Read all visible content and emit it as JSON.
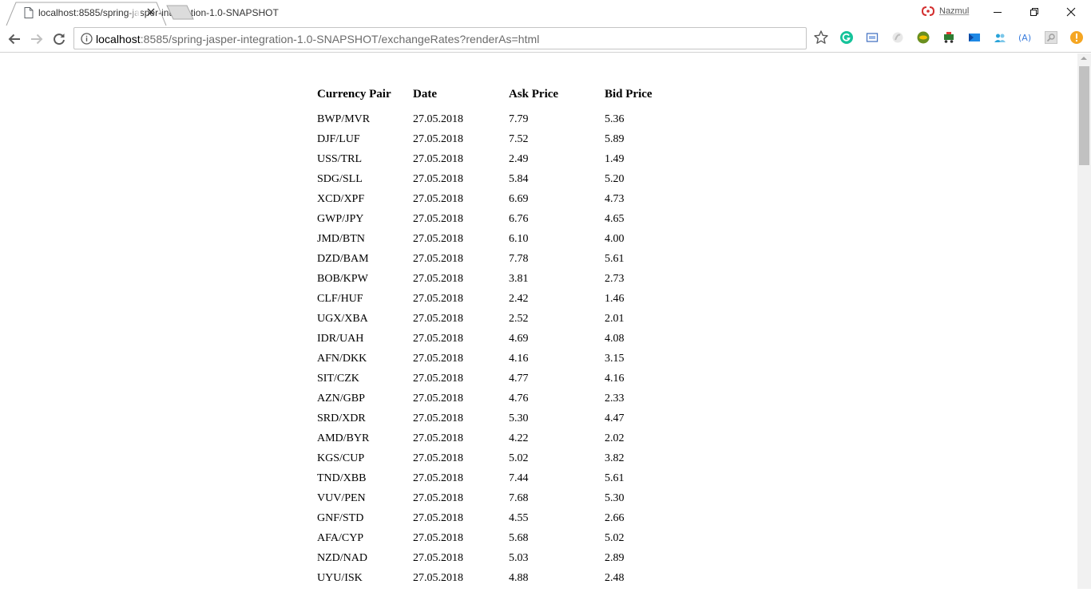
{
  "browser": {
    "tab_title": "localhost:8585/spring-jasper-integration-1.0-SNAPSHOT",
    "profile_name": "Nazmul",
    "url_host": "localhost",
    "url_rest": ":8585/spring-jasper-integration-1.0-SNAPSHOT/exchangeRates?renderAs=html",
    "extensions": [
      "grammarly-icon",
      "cast-icon",
      "extension-icon",
      "extension-icon",
      "extension-icon",
      "extension-icon",
      "extension-icon",
      "extension-icon",
      "extension-icon",
      "extension-icon"
    ]
  },
  "report": {
    "headers": {
      "pair": "Currency Pair",
      "date": "Date",
      "ask": "Ask Price",
      "bid": "Bid Price"
    },
    "rows": [
      {
        "pair": "BWP/MVR",
        "date": "27.05.2018",
        "ask": "7.79",
        "bid": "5.36"
      },
      {
        "pair": "DJF/LUF",
        "date": "27.05.2018",
        "ask": "7.52",
        "bid": "5.89"
      },
      {
        "pair": "USS/TRL",
        "date": "27.05.2018",
        "ask": "2.49",
        "bid": "1.49"
      },
      {
        "pair": "SDG/SLL",
        "date": "27.05.2018",
        "ask": "5.84",
        "bid": "5.20"
      },
      {
        "pair": "XCD/XPF",
        "date": "27.05.2018",
        "ask": "6.69",
        "bid": "4.73"
      },
      {
        "pair": "GWP/JPY",
        "date": "27.05.2018",
        "ask": "6.76",
        "bid": "4.65"
      },
      {
        "pair": "JMD/BTN",
        "date": "27.05.2018",
        "ask": "6.10",
        "bid": "4.00"
      },
      {
        "pair": "DZD/BAM",
        "date": "27.05.2018",
        "ask": "7.78",
        "bid": "5.61"
      },
      {
        "pair": "BOB/KPW",
        "date": "27.05.2018",
        "ask": "3.81",
        "bid": "2.73"
      },
      {
        "pair": "CLF/HUF",
        "date": "27.05.2018",
        "ask": "2.42",
        "bid": "1.46"
      },
      {
        "pair": "UGX/XBA",
        "date": "27.05.2018",
        "ask": "2.52",
        "bid": "2.01"
      },
      {
        "pair": "IDR/UAH",
        "date": "27.05.2018",
        "ask": "4.69",
        "bid": "4.08"
      },
      {
        "pair": "AFN/DKK",
        "date": "27.05.2018",
        "ask": "4.16",
        "bid": "3.15"
      },
      {
        "pair": "SIT/CZK",
        "date": "27.05.2018",
        "ask": "4.77",
        "bid": "4.16"
      },
      {
        "pair": "AZN/GBP",
        "date": "27.05.2018",
        "ask": "4.76",
        "bid": "2.33"
      },
      {
        "pair": "SRD/XDR",
        "date": "27.05.2018",
        "ask": "5.30",
        "bid": "4.47"
      },
      {
        "pair": "AMD/BYR",
        "date": "27.05.2018",
        "ask": "4.22",
        "bid": "2.02"
      },
      {
        "pair": "KGS/CUP",
        "date": "27.05.2018",
        "ask": "5.02",
        "bid": "3.82"
      },
      {
        "pair": "TND/XBB",
        "date": "27.05.2018",
        "ask": "7.44",
        "bid": "5.61"
      },
      {
        "pair": "VUV/PEN",
        "date": "27.05.2018",
        "ask": "7.68",
        "bid": "5.30"
      },
      {
        "pair": "GNF/STD",
        "date": "27.05.2018",
        "ask": "4.55",
        "bid": "2.66"
      },
      {
        "pair": "AFA/CYP",
        "date": "27.05.2018",
        "ask": "5.68",
        "bid": "5.02"
      },
      {
        "pair": "NZD/NAD",
        "date": "27.05.2018",
        "ask": "5.03",
        "bid": "2.89"
      },
      {
        "pair": "UYU/ISK",
        "date": "27.05.2018",
        "ask": "4.88",
        "bid": "2.48"
      }
    ]
  }
}
